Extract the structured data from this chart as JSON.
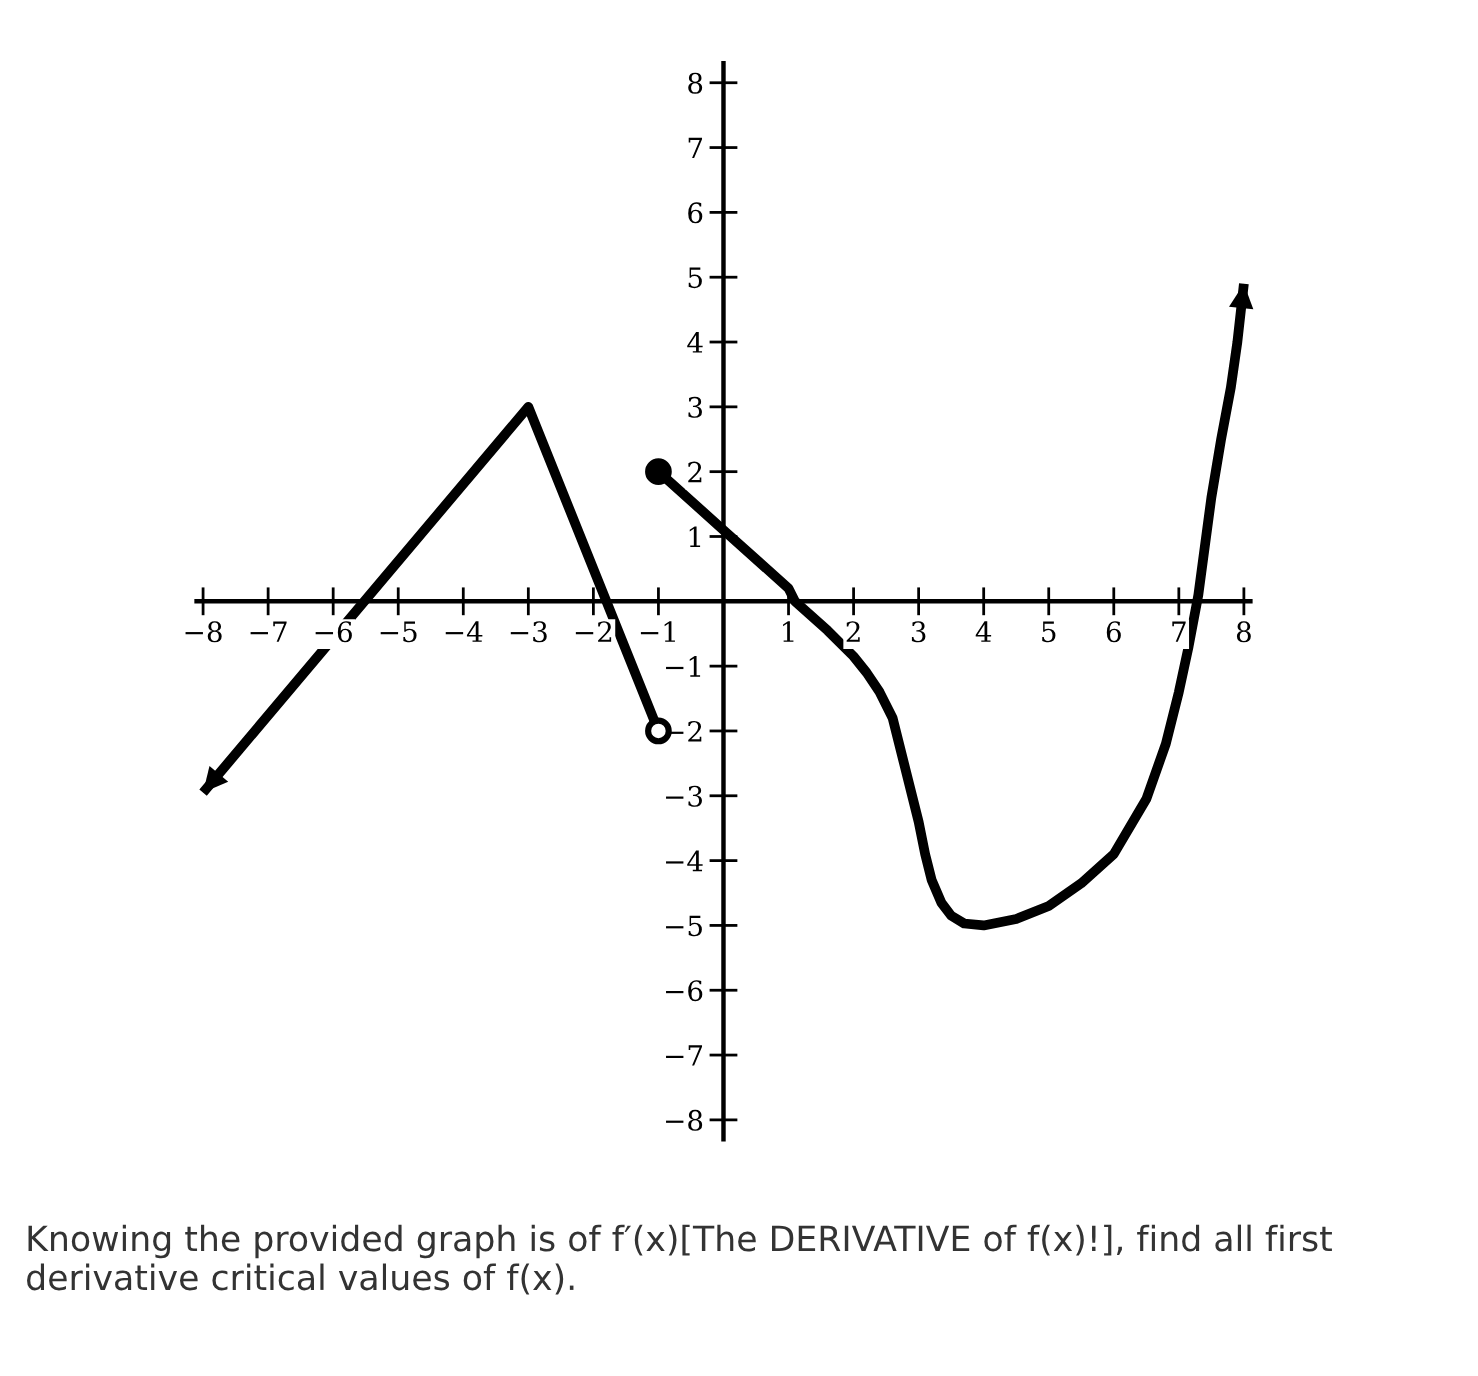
{
  "chart_data": {
    "type": "line",
    "xlim": [
      -8.1,
      8.1
    ],
    "ylim": [
      -8.3,
      8.3
    ],
    "xticks": [
      -8,
      -7,
      -6,
      -5,
      -4,
      -3,
      -2,
      -1,
      1,
      2,
      3,
      4,
      5,
      6,
      7,
      8
    ],
    "yticks": [
      -8,
      -7,
      -6,
      -5,
      -4,
      -3,
      -2,
      -1,
      1,
      2,
      3,
      4,
      5,
      6,
      7,
      8
    ],
    "grid": false,
    "series": [
      {
        "color": "#000000",
        "x": [
          -8,
          -3,
          -1
        ],
        "values": [
          -2.95,
          3,
          -2
        ]
      },
      {
        "color": "#000000",
        "x": [
          -1,
          0,
          1,
          1.1,
          1.6,
          2,
          2.2,
          2.4,
          2.6,
          2.8,
          3,
          3.1,
          3.2,
          3.35,
          3.5,
          3.7,
          4,
          4.5,
          5,
          5.5,
          6,
          6.5,
          6.8,
          7,
          7.15,
          7.3,
          7.5,
          7.65,
          7.8,
          7.9,
          8
        ],
        "values": [
          2,
          1.1,
          0.2,
          0,
          -0.45,
          -0.85,
          -1.1,
          -1.4,
          -1.8,
          -2.6,
          -3.4,
          -3.9,
          -4.3,
          -4.65,
          -4.85,
          -4.97,
          -5,
          -4.9,
          -4.7,
          -4.35,
          -3.9,
          -3.05,
          -2.2,
          -1.4,
          -0.7,
          0.1,
          1.6,
          2.5,
          3.3,
          4.0,
          4.9
        ]
      },
      {
        "type": "scatter",
        "color": "#000000",
        "marker": "circle",
        "x": [
          -1
        ],
        "values": [
          2
        ]
      },
      {
        "type": "scatter",
        "color": "#ffffff",
        "marker": "circle",
        "x": [
          -1
        ],
        "values": [
          -2
        ]
      }
    ],
    "annotations": [
      "Knowing the provided graph is of f′(x)[The DERIVATIVE of f(x)!], find all first derivative critical values of f(x)."
    ]
  }
}
